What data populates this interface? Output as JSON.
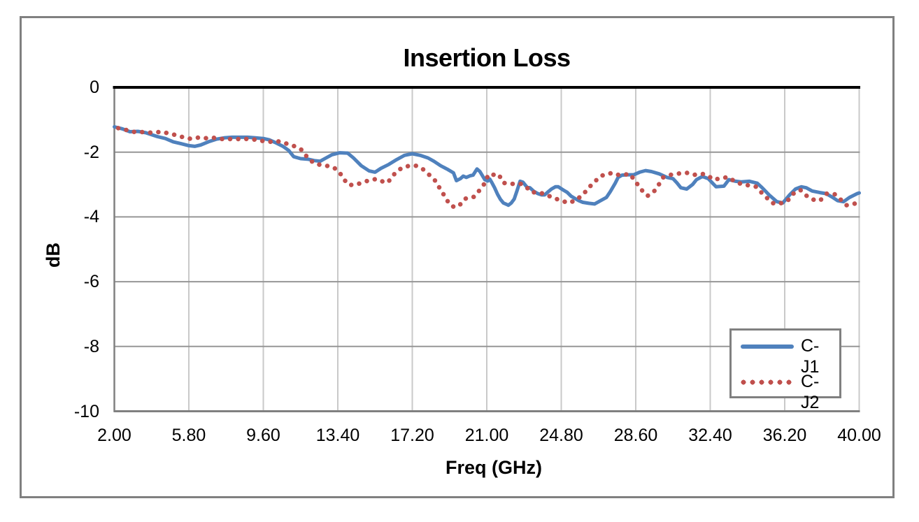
{
  "colors": {
    "series1": "#4F81BD",
    "series2": "#C0504D",
    "grid_horizontal": "#969696",
    "grid_vertical": "#C9C9C9",
    "zero_axis": "#000000",
    "axis_line": "#808080",
    "chart_border": "#808080",
    "background": "#FFFFFF",
    "text": "#000000"
  },
  "chart_data": {
    "type": "line",
    "title": "Insertion Loss",
    "grid": true,
    "legend_position": "inside-right",
    "x_axis": {
      "label": "Freq (GHz)",
      "min": 2,
      "max": 40,
      "tick_values": [
        2,
        5.8,
        9.6,
        13.4,
        17.2,
        21,
        24.8,
        28.6,
        32.4,
        36.2,
        40
      ],
      "tick_labels": [
        "2.00",
        "5.80",
        "9.60",
        "13.40",
        "17.20",
        "21.00",
        "24.80",
        "28.60",
        "32.40",
        "36.20",
        "40.00"
      ]
    },
    "y_axis": {
      "label": "dB",
      "min": -10,
      "max": 0,
      "tick_values": [
        0,
        -2,
        -4,
        -6,
        -8,
        -10
      ],
      "tick_labels": [
        "0",
        "-2",
        "-4",
        "-6",
        "-8",
        "-10"
      ]
    },
    "series": [
      {
        "name": "C-J1",
        "style": "solid",
        "color": "#4F81BD",
        "points": [
          [
            2.0,
            -1.22
          ],
          [
            2.4,
            -1.28
          ],
          [
            2.8,
            -1.37
          ],
          [
            3.2,
            -1.36
          ],
          [
            3.6,
            -1.4
          ],
          [
            3.9,
            -1.46
          ],
          [
            4.2,
            -1.52
          ],
          [
            4.6,
            -1.58
          ],
          [
            5.0,
            -1.68
          ],
          [
            5.4,
            -1.74
          ],
          [
            5.8,
            -1.8
          ],
          [
            6.1,
            -1.82
          ],
          [
            6.4,
            -1.78
          ],
          [
            6.8,
            -1.68
          ],
          [
            7.2,
            -1.6
          ],
          [
            7.6,
            -1.56
          ],
          [
            8.0,
            -1.54
          ],
          [
            8.4,
            -1.54
          ],
          [
            8.8,
            -1.54
          ],
          [
            9.2,
            -1.56
          ],
          [
            9.6,
            -1.58
          ],
          [
            9.9,
            -1.62
          ],
          [
            10.2,
            -1.7
          ],
          [
            10.6,
            -1.82
          ],
          [
            10.9,
            -1.95
          ],
          [
            11.15,
            -2.14
          ],
          [
            11.5,
            -2.2
          ],
          [
            11.9,
            -2.22
          ],
          [
            12.2,
            -2.26
          ],
          [
            12.5,
            -2.28
          ],
          [
            12.8,
            -2.18
          ],
          [
            13.1,
            -2.08
          ],
          [
            13.5,
            -2.02
          ],
          [
            13.9,
            -2.03
          ],
          [
            14.2,
            -2.18
          ],
          [
            14.6,
            -2.42
          ],
          [
            15.0,
            -2.58
          ],
          [
            15.3,
            -2.62
          ],
          [
            15.6,
            -2.5
          ],
          [
            16.0,
            -2.38
          ],
          [
            16.4,
            -2.23
          ],
          [
            16.8,
            -2.1
          ],
          [
            17.2,
            -2.05
          ],
          [
            17.6,
            -2.1
          ],
          [
            18.0,
            -2.18
          ],
          [
            18.3,
            -2.28
          ],
          [
            18.65,
            -2.42
          ],
          [
            19.0,
            -2.53
          ],
          [
            19.3,
            -2.64
          ],
          [
            19.45,
            -2.88
          ],
          [
            19.65,
            -2.82
          ],
          [
            19.8,
            -2.74
          ],
          [
            19.95,
            -2.78
          ],
          [
            20.15,
            -2.73
          ],
          [
            20.3,
            -2.71
          ],
          [
            20.5,
            -2.52
          ],
          [
            20.65,
            -2.6
          ],
          [
            20.9,
            -2.85
          ],
          [
            21.05,
            -2.89
          ],
          [
            21.15,
            -2.83
          ],
          [
            21.25,
            -2.93
          ],
          [
            21.4,
            -3.1
          ],
          [
            21.55,
            -3.3
          ],
          [
            21.7,
            -3.46
          ],
          [
            21.85,
            -3.57
          ],
          [
            22.0,
            -3.61
          ],
          [
            22.1,
            -3.64
          ],
          [
            22.25,
            -3.57
          ],
          [
            22.4,
            -3.45
          ],
          [
            22.55,
            -3.18
          ],
          [
            22.7,
            -2.9
          ],
          [
            22.85,
            -2.93
          ],
          [
            23.05,
            -3.08
          ],
          [
            23.2,
            -3.1
          ],
          [
            23.4,
            -3.21
          ],
          [
            23.6,
            -3.28
          ],
          [
            23.8,
            -3.32
          ],
          [
            23.95,
            -3.32
          ],
          [
            24.1,
            -3.24
          ],
          [
            24.3,
            -3.14
          ],
          [
            24.5,
            -3.07
          ],
          [
            24.65,
            -3.07
          ],
          [
            24.9,
            -3.17
          ],
          [
            25.1,
            -3.24
          ],
          [
            25.3,
            -3.36
          ],
          [
            25.5,
            -3.43
          ],
          [
            25.7,
            -3.5
          ],
          [
            25.9,
            -3.55
          ],
          [
            26.2,
            -3.58
          ],
          [
            26.5,
            -3.6
          ],
          [
            26.8,
            -3.5
          ],
          [
            27.1,
            -3.4
          ],
          [
            27.3,
            -3.22
          ],
          [
            27.55,
            -2.96
          ],
          [
            27.7,
            -2.78
          ],
          [
            27.9,
            -2.71
          ],
          [
            28.2,
            -2.7
          ],
          [
            28.5,
            -2.7
          ],
          [
            28.8,
            -2.62
          ],
          [
            29.1,
            -2.57
          ],
          [
            29.4,
            -2.6
          ],
          [
            29.8,
            -2.67
          ],
          [
            30.2,
            -2.78
          ],
          [
            30.5,
            -2.82
          ],
          [
            30.7,
            -2.95
          ],
          [
            30.9,
            -3.1
          ],
          [
            31.2,
            -3.14
          ],
          [
            31.5,
            -3.0
          ],
          [
            31.7,
            -2.85
          ],
          [
            32.0,
            -2.75
          ],
          [
            32.3,
            -2.82
          ],
          [
            32.7,
            -3.07
          ],
          [
            33.1,
            -3.05
          ],
          [
            33.35,
            -2.85
          ],
          [
            33.7,
            -2.9
          ],
          [
            34.0,
            -2.92
          ],
          [
            34.4,
            -2.9
          ],
          [
            34.8,
            -2.96
          ],
          [
            35.05,
            -3.1
          ],
          [
            35.4,
            -3.32
          ],
          [
            35.8,
            -3.53
          ],
          [
            36.1,
            -3.57
          ],
          [
            36.45,
            -3.32
          ],
          [
            36.75,
            -3.14
          ],
          [
            37.05,
            -3.07
          ],
          [
            37.3,
            -3.1
          ],
          [
            37.6,
            -3.2
          ],
          [
            38.0,
            -3.25
          ],
          [
            38.3,
            -3.28
          ],
          [
            38.6,
            -3.38
          ],
          [
            38.9,
            -3.5
          ],
          [
            39.2,
            -3.53
          ],
          [
            39.5,
            -3.4
          ],
          [
            39.9,
            -3.28
          ],
          [
            40.0,
            -3.26
          ]
        ]
      },
      {
        "name": "C-J2",
        "style": "dotted",
        "color": "#C0504D",
        "points": [
          [
            2.2,
            -1.26
          ],
          [
            2.7,
            -1.33
          ],
          [
            3.05,
            -1.38
          ],
          [
            3.5,
            -1.38
          ],
          [
            3.9,
            -1.4
          ],
          [
            4.45,
            -1.37
          ],
          [
            4.8,
            -1.43
          ],
          [
            5.2,
            -1.48
          ],
          [
            5.55,
            -1.55
          ],
          [
            5.9,
            -1.59
          ],
          [
            6.3,
            -1.55
          ],
          [
            6.65,
            -1.57
          ],
          [
            7.0,
            -1.55
          ],
          [
            7.35,
            -1.59
          ],
          [
            7.7,
            -1.6
          ],
          [
            8.1,
            -1.59
          ],
          [
            8.45,
            -1.6
          ],
          [
            8.85,
            -1.59
          ],
          [
            9.25,
            -1.62
          ],
          [
            9.6,
            -1.66
          ],
          [
            9.95,
            -1.68
          ],
          [
            10.3,
            -1.66
          ],
          [
            10.65,
            -1.71
          ],
          [
            11.0,
            -1.78
          ],
          [
            11.35,
            -1.85
          ],
          [
            11.6,
            -1.95
          ],
          [
            11.85,
            -2.17
          ],
          [
            12.2,
            -2.35
          ],
          [
            12.55,
            -2.4
          ],
          [
            12.9,
            -2.43
          ],
          [
            13.2,
            -2.48
          ],
          [
            13.45,
            -2.6
          ],
          [
            13.65,
            -2.77
          ],
          [
            13.9,
            -3.0
          ],
          [
            14.2,
            -3.02
          ],
          [
            14.5,
            -2.97
          ],
          [
            14.8,
            -2.91
          ],
          [
            15.1,
            -2.85
          ],
          [
            15.4,
            -2.83
          ],
          [
            15.7,
            -2.91
          ],
          [
            15.95,
            -2.94
          ],
          [
            16.2,
            -2.73
          ],
          [
            16.5,
            -2.55
          ],
          [
            16.8,
            -2.45
          ],
          [
            17.1,
            -2.42
          ],
          [
            17.4,
            -2.42
          ],
          [
            17.75,
            -2.53
          ],
          [
            18.1,
            -2.72
          ],
          [
            18.4,
            -2.9
          ],
          [
            18.65,
            -3.17
          ],
          [
            18.9,
            -3.4
          ],
          [
            19.1,
            -3.62
          ],
          [
            19.35,
            -3.7
          ],
          [
            19.6,
            -3.65
          ],
          [
            19.85,
            -3.45
          ],
          [
            20.1,
            -3.4
          ],
          [
            20.35,
            -3.38
          ],
          [
            20.6,
            -3.2
          ],
          [
            20.85,
            -3.0
          ],
          [
            21.1,
            -2.68
          ],
          [
            21.35,
            -2.7
          ],
          [
            21.6,
            -2.68
          ],
          [
            21.85,
            -2.95
          ],
          [
            22.2,
            -2.98
          ],
          [
            22.5,
            -2.98
          ],
          [
            22.75,
            -2.98
          ],
          [
            23.05,
            -3.1
          ],
          [
            23.3,
            -3.24
          ],
          [
            23.6,
            -3.24
          ],
          [
            24.0,
            -3.3
          ],
          [
            24.4,
            -3.42
          ],
          [
            24.8,
            -3.49
          ],
          [
            25.15,
            -3.57
          ],
          [
            25.5,
            -3.5
          ],
          [
            25.9,
            -3.32
          ],
          [
            26.2,
            -3.1
          ],
          [
            26.5,
            -2.92
          ],
          [
            26.8,
            -2.74
          ],
          [
            27.15,
            -2.67
          ],
          [
            27.45,
            -2.64
          ],
          [
            27.7,
            -2.7
          ],
          [
            28.0,
            -2.7
          ],
          [
            28.3,
            -2.67
          ],
          [
            28.6,
            -2.92
          ],
          [
            28.9,
            -3.17
          ],
          [
            29.2,
            -3.35
          ],
          [
            29.5,
            -3.24
          ],
          [
            29.75,
            -3.03
          ],
          [
            30.0,
            -2.78
          ],
          [
            30.4,
            -2.7
          ],
          [
            30.7,
            -2.67
          ],
          [
            31.0,
            -2.64
          ],
          [
            31.3,
            -2.64
          ],
          [
            31.6,
            -2.7
          ],
          [
            32.0,
            -2.67
          ],
          [
            32.3,
            -2.73
          ],
          [
            32.55,
            -2.85
          ],
          [
            32.85,
            -2.82
          ],
          [
            33.3,
            -2.77
          ],
          [
            33.7,
            -2.92
          ],
          [
            34.05,
            -3.0
          ],
          [
            34.4,
            -3.03
          ],
          [
            34.75,
            -3.07
          ],
          [
            35.0,
            -3.24
          ],
          [
            35.25,
            -3.39
          ],
          [
            35.55,
            -3.57
          ],
          [
            35.9,
            -3.6
          ],
          [
            36.35,
            -3.5
          ],
          [
            36.65,
            -3.28
          ],
          [
            37.0,
            -3.17
          ],
          [
            37.25,
            -3.32
          ],
          [
            37.6,
            -3.46
          ],
          [
            38.0,
            -3.5
          ],
          [
            38.35,
            -3.28
          ],
          [
            38.75,
            -3.3
          ],
          [
            39.05,
            -3.46
          ],
          [
            39.35,
            -3.64
          ],
          [
            39.65,
            -3.6
          ],
          [
            39.9,
            -3.58
          ]
        ]
      }
    ]
  }
}
